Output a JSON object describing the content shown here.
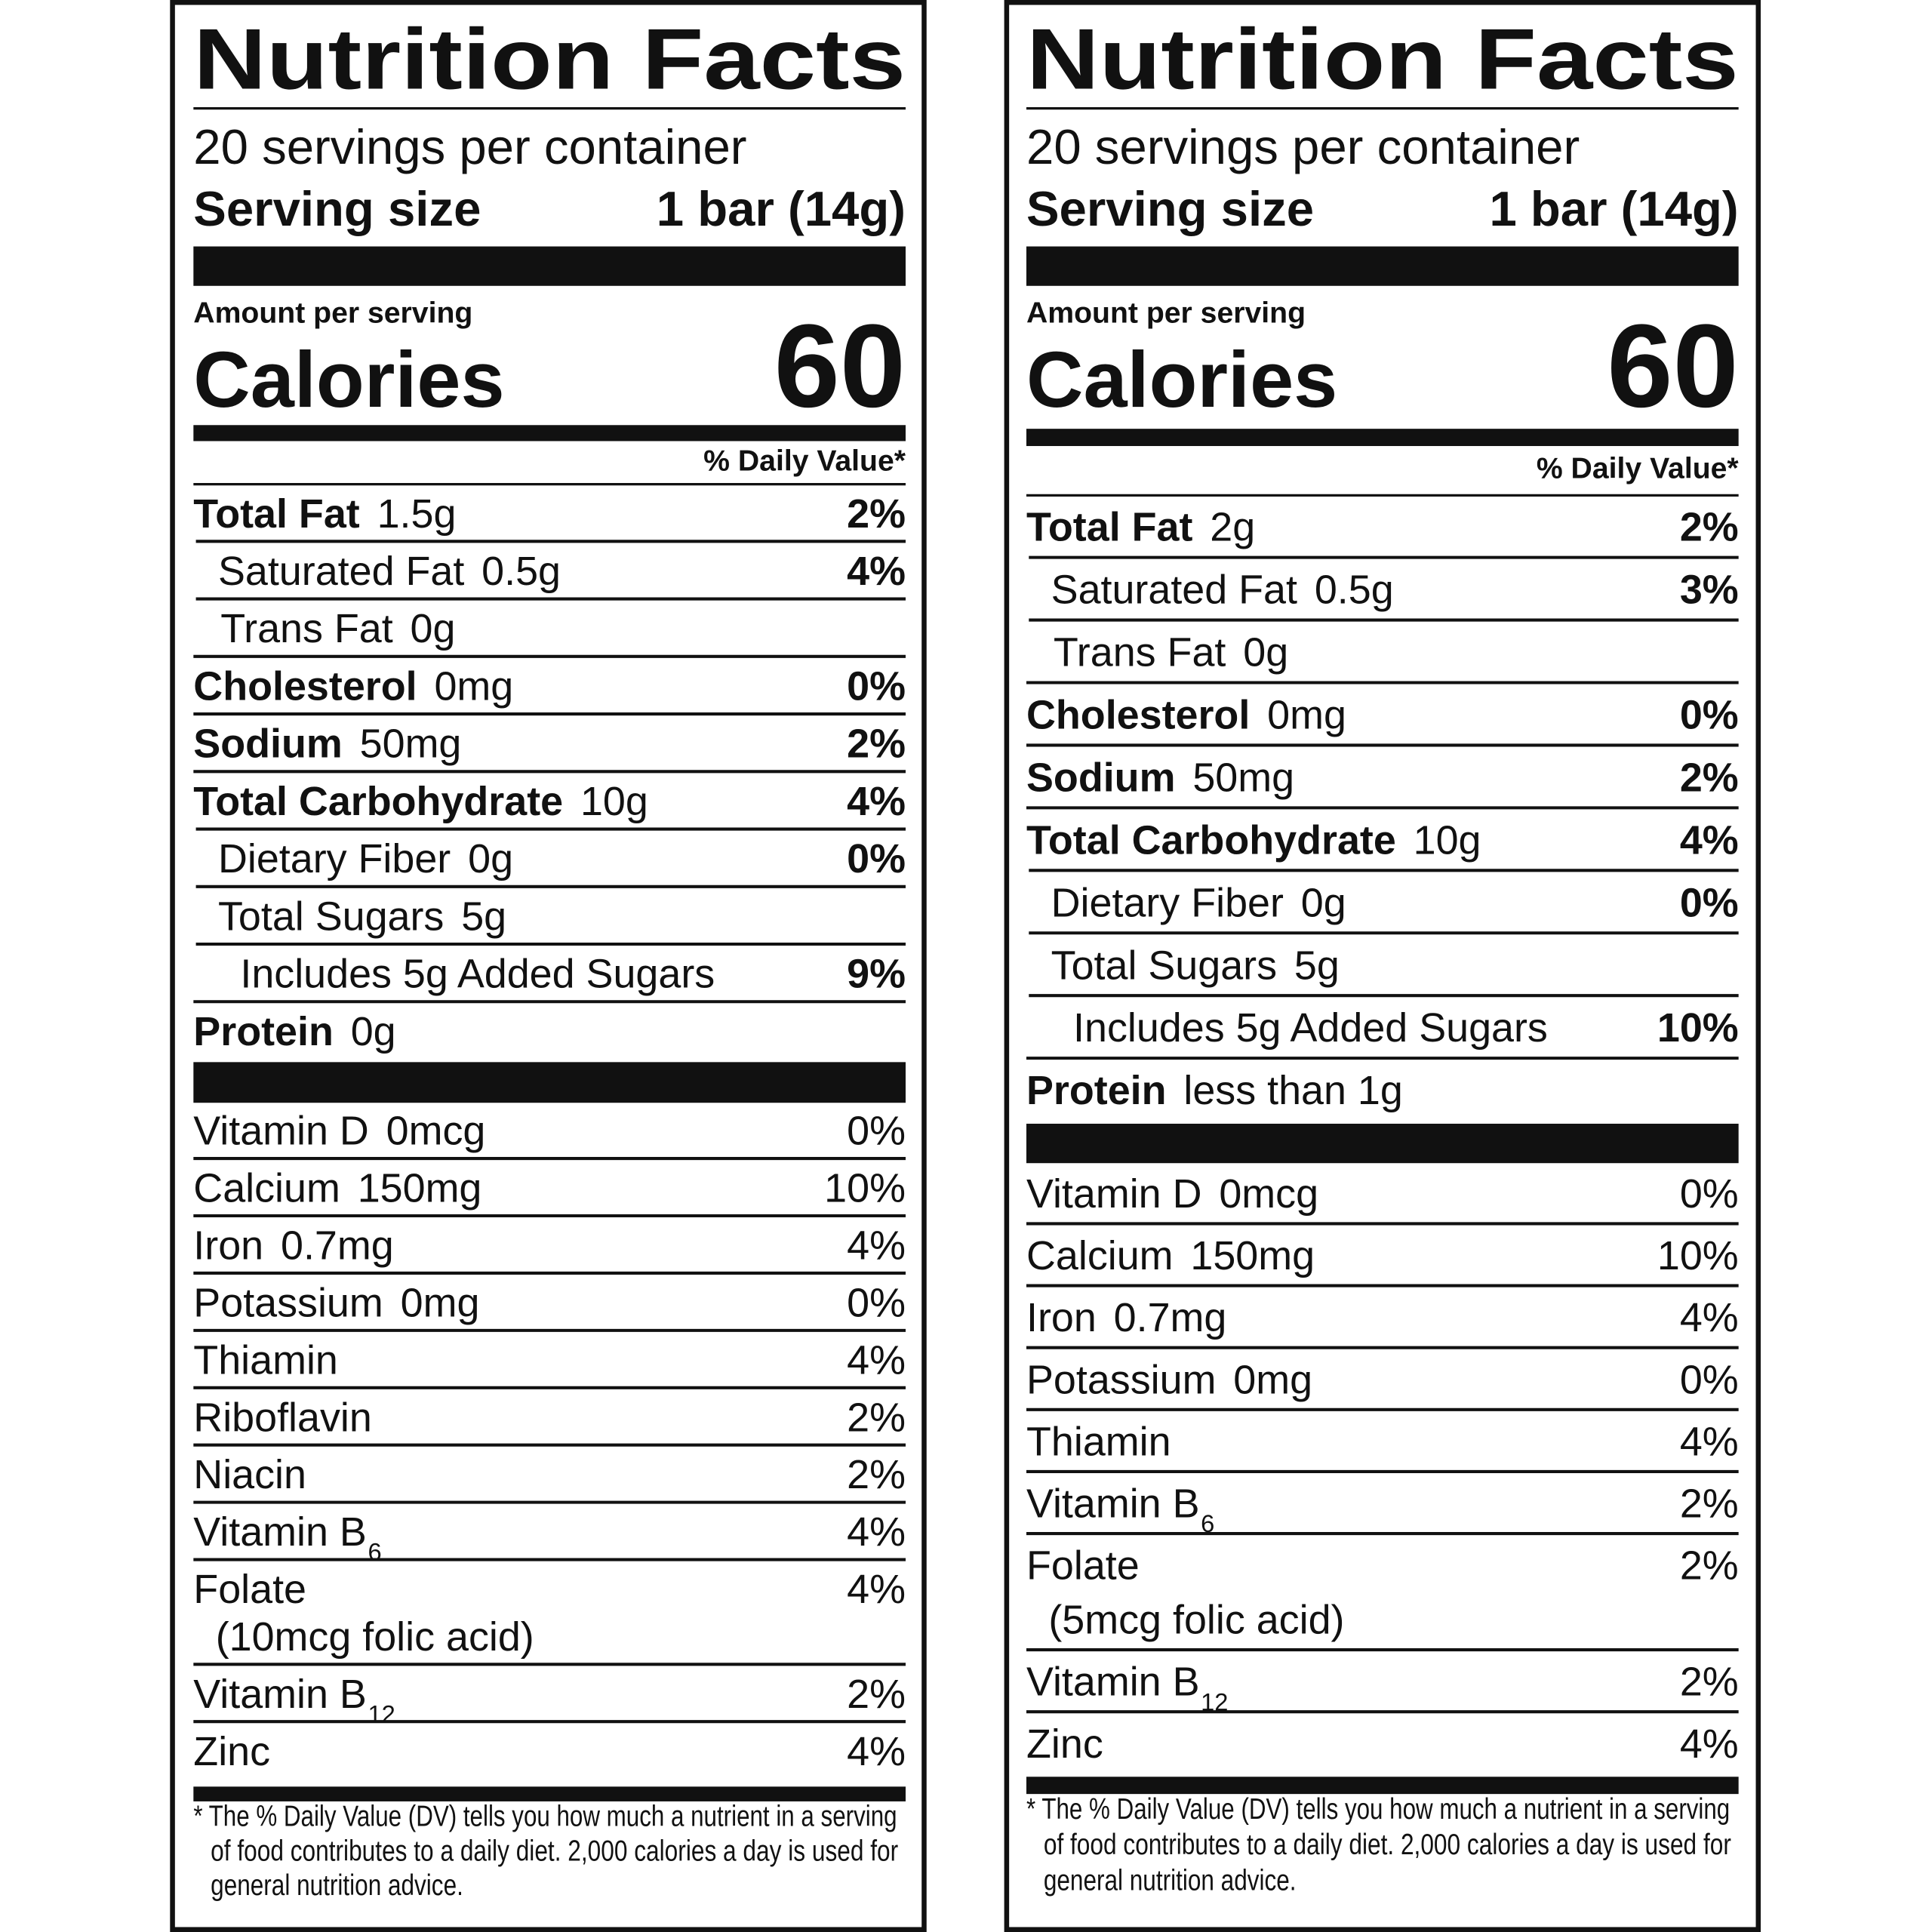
{
  "labels": [
    {
      "title": "Nutrition Facts",
      "servings": "20 servings per container",
      "serving_size_label": "Serving size",
      "serving_size": "1 bar (14g)",
      "amount_per_serving": "Amount per serving",
      "calories_label": "Calories",
      "calories": "60",
      "dv_header": "% Daily Value*",
      "nutrients": [
        {
          "name": "Total Fat",
          "amount": "1.5g",
          "dv": "2%"
        },
        {
          "name": "Saturated Fat",
          "amount": "0.5g",
          "dv": "4%"
        },
        {
          "name": "Trans Fat",
          "amount": "0g"
        },
        {
          "name": "Cholesterol",
          "amount": "0mg",
          "dv": "0%"
        },
        {
          "name": "Sodium",
          "amount": "50mg",
          "dv": "2%"
        },
        {
          "name": "Total Carbohydrate",
          "amount": "10g",
          "dv": "4%"
        },
        {
          "name": "Dietary Fiber",
          "amount": "0g",
          "dv": "0%"
        },
        {
          "name": "Total Sugars",
          "amount": "5g"
        },
        {
          "name": "Includes 5g Added Sugars",
          "dv": "9%"
        },
        {
          "name": "Protein",
          "amount": "0g"
        }
      ],
      "vitamins": [
        {
          "name": "Vitamin D",
          "amount": "0mcg",
          "dv": "0%"
        },
        {
          "name": "Calcium",
          "amount": "150mg",
          "dv": "10%"
        },
        {
          "name": "Iron",
          "amount": "0.7mg",
          "dv": "4%"
        },
        {
          "name": "Potassium",
          "amount": "0mg",
          "dv": "0%"
        },
        {
          "name": "Thiamin",
          "dv": "4%"
        },
        {
          "name": "Riboflavin",
          "dv": "2%"
        },
        {
          "name": "Niacin",
          "dv": "2%"
        },
        {
          "name": "Vitamin B",
          "sub": "6",
          "dv": "4%"
        },
        {
          "name": "Folate",
          "note": "(10mcg folic acid)",
          "dv": "4%"
        },
        {
          "name": "Vitamin B",
          "sub": "12",
          "dv": "2%"
        },
        {
          "name": "Zinc",
          "dv": "4%"
        }
      ],
      "footnote": [
        "* The % Daily Value (DV) tells you how much a nutrient in a serving",
        "of food contributes to a daily diet. 2,000 calories a day is used for",
        "general nutrition advice."
      ]
    },
    {
      "title": "Nutrition Facts",
      "servings": "20 servings per container",
      "serving_size_label": "Serving size",
      "serving_size": "1 bar (14g)",
      "amount_per_serving": "Amount per serving",
      "calories_label": "Calories",
      "calories": "60",
      "dv_header": "% Daily Value*",
      "nutrients": [
        {
          "name": "Total Fat",
          "amount": "2g",
          "dv": "2%"
        },
        {
          "name": "Saturated Fat",
          "amount": "0.5g",
          "dv": "3%"
        },
        {
          "name": "Trans Fat",
          "amount": "0g"
        },
        {
          "name": "Cholesterol",
          "amount": "0mg",
          "dv": "0%"
        },
        {
          "name": "Sodium",
          "amount": "50mg",
          "dv": "2%"
        },
        {
          "name": "Total Carbohydrate",
          "amount": "10g",
          "dv": "4%"
        },
        {
          "name": "Dietary Fiber",
          "amount": "0g",
          "dv": "0%"
        },
        {
          "name": "Total Sugars",
          "amount": "5g"
        },
        {
          "name": "Includes 5g Added Sugars",
          "dv": "10%"
        },
        {
          "name": "Protein",
          "amount": "less than 1g"
        }
      ],
      "vitamins": [
        {
          "name": "Vitamin D",
          "amount": "0mcg",
          "dv": "0%"
        },
        {
          "name": "Calcium",
          "amount": "150mg",
          "dv": "10%"
        },
        {
          "name": "Iron",
          "amount": "0.7mg",
          "dv": "4%"
        },
        {
          "name": "Potassium",
          "amount": "0mg",
          "dv": "0%"
        },
        {
          "name": "Thiamin",
          "dv": "4%"
        },
        {
          "name": "Vitamin B",
          "sub": "6",
          "dv": "2%"
        },
        {
          "name": "Folate",
          "note": "(5mcg folic acid)",
          "dv": "2%"
        },
        {
          "name": "Vitamin B",
          "sub": "12",
          "dv": "2%"
        },
        {
          "name": "Zinc",
          "dv": "4%"
        }
      ],
      "footnote": [
        "* The % Daily Value (DV) tells you how much a nutrient in a serving",
        "of food contributes to a daily diet. 2,000 calories a day is used for",
        "general nutrition advice."
      ]
    }
  ]
}
